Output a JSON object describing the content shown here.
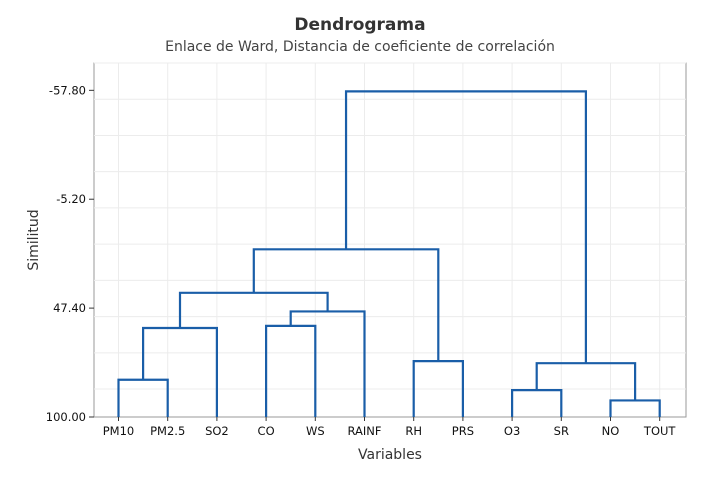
{
  "chart_data": {
    "type": "dendrogram",
    "title": "Dendrograma",
    "subtitle": "Enlace de Ward, Distancia de coeficiente de correlación",
    "xlabel": "Variables",
    "ylabel": "Similitud",
    "yticks": [
      "-57.80",
      "-5.20",
      "47.40",
      "100.00"
    ],
    "ylim": [
      100,
      -71
    ],
    "grid": true,
    "leaves": [
      "PM10",
      "PM2.5",
      "SO2",
      "CO",
      "WS",
      "RAINF",
      "RH",
      "PRS",
      "O3",
      "SR",
      "NO",
      "TOUT"
    ],
    "merges": [
      {
        "a": "PM10",
        "b": "PM2.5",
        "similarity": 82.0
      },
      {
        "a": "m0",
        "b": "SO2",
        "similarity": 57.0
      },
      {
        "a": "CO",
        "b": "WS",
        "similarity": 56.0
      },
      {
        "a": "m2",
        "b": "RAINF",
        "similarity": 49.0
      },
      {
        "a": "m1",
        "b": "m3",
        "similarity": 40.0
      },
      {
        "a": "RH",
        "b": "PRS",
        "similarity": 73.0
      },
      {
        "a": "m4",
        "b": "m5",
        "similarity": 19.0
      },
      {
        "a": "O3",
        "b": "SR",
        "similarity": 87.0
      },
      {
        "a": "NO",
        "b": "TOUT",
        "similarity": 92.0
      },
      {
        "a": "m7",
        "b": "m8",
        "similarity": 74.0
      },
      {
        "a": "m6",
        "b": "m9",
        "similarity": -57.3
      }
    ],
    "line_color": "#1a5ea8"
  }
}
